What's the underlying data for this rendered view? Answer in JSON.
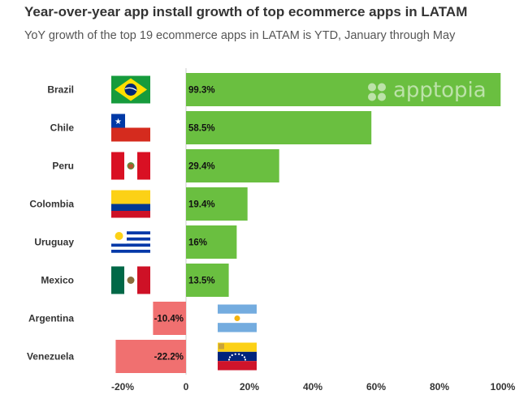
{
  "chart_data": {
    "type": "bar",
    "orientation": "horizontal",
    "title": "Year-over-year app install growth of top ecommerce apps in LATAM",
    "subtitle": "YoY growth of the top 19 ecommerce apps in LATAM is YTD, January through May",
    "categories": [
      "Brazil",
      "Chile",
      "Peru",
      "Colombia",
      "Uruguay",
      "Mexico",
      "Argentina",
      "Venezuela"
    ],
    "values": [
      99.3,
      58.5,
      29.4,
      19.4,
      16,
      13.5,
      -10.4,
      -22.2
    ],
    "value_labels": [
      "99.3%",
      "58.5%",
      "29.4%",
      "19.4%",
      "16%",
      "13.5%",
      "-10.4%",
      "-22.2%"
    ],
    "flags": [
      "brazil-flag",
      "chile-flag",
      "peru-flag",
      "colombia-flag",
      "uruguay-flag",
      "mexico-flag",
      "argentina-flag",
      "venezuela-flag"
    ],
    "xlim": [
      -22.2,
      100
    ],
    "xticks": [
      -20,
      0,
      20,
      40,
      60,
      80,
      100
    ],
    "xtick_labels": [
      "-20%",
      "0",
      "20%",
      "40%",
      "60%",
      "80%",
      "100%"
    ],
    "positive_color": "#6abf40",
    "negative_color": "#f07070",
    "watermark": "apptopia"
  }
}
